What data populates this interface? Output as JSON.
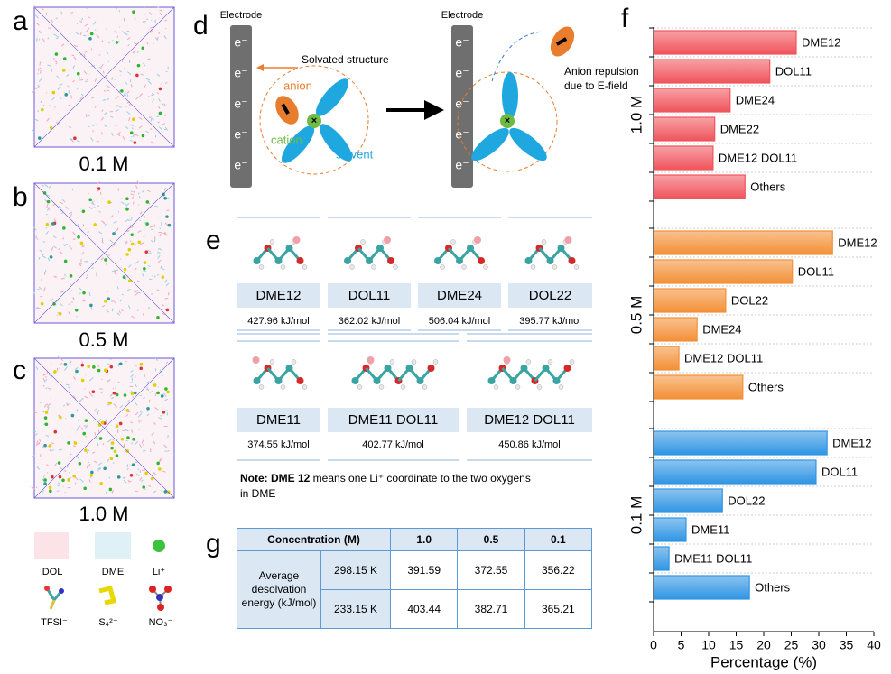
{
  "letters": [
    "a",
    "b",
    "c",
    "d",
    "e",
    "f",
    "g"
  ],
  "boxes": [
    {
      "label": "0.1 M"
    },
    {
      "label": "0.5 M"
    },
    {
      "label": "1.0 M"
    }
  ],
  "species": [
    "DOL",
    "DME",
    "Li⁺",
    "TFSI⁻",
    "S₄²⁻",
    "NO₃⁻"
  ],
  "schematic": {
    "electrode": "Electrode",
    "electrons": [
      "e⁻",
      "e⁻",
      "e⁻",
      "e⁻",
      "e⁻"
    ],
    "solvated": "Solvated structure",
    "anion": "anion",
    "cation": "cation",
    "solvent": "solvent",
    "repulsion": [
      "Anion repulsion",
      "due to E-field"
    ]
  },
  "molecules": [
    {
      "name": "DME12",
      "energy": "427.96 kJ/mol"
    },
    {
      "name": "DOL11",
      "energy": "362.02 kJ/mol"
    },
    {
      "name": "DME24",
      "energy": "506.04 kJ/mol"
    },
    {
      "name": "DOL22",
      "energy": "395.77 kJ/mol"
    },
    {
      "name": "DME11",
      "energy": "374.55 kJ/mol"
    },
    {
      "name": "DME11 DOL11",
      "energy": "402.77 kJ/mol"
    },
    {
      "name": "DME12 DOL11",
      "energy": "450.86 kJ/mol"
    }
  ],
  "note": {
    "bold": "Note: DME 12",
    "line1": " means one Li⁺ coordinate to the two oxygens",
    "line2": "in DME"
  },
  "table": {
    "header": [
      "Concentration (M)",
      "1.0",
      "0.5",
      "0.1"
    ],
    "row_label": "Average desolvation energy (kJ/mol)",
    "rows": [
      [
        "298.15 K",
        391.59,
        372.55,
        356.22
      ],
      [
        "233.15 K",
        403.44,
        382.71,
        365.21
      ]
    ]
  },
  "chart_data": {
    "type": "bar",
    "orientation": "horizontal",
    "xlabel": "Percentage (%)",
    "xlim": [
      0,
      40
    ],
    "xticks": [
      0,
      5,
      10,
      15,
      20,
      25,
      30,
      35,
      40
    ],
    "groups": [
      {
        "name": "1.0 M",
        "color": "#f0545c",
        "categories": [
          "DME12",
          "DOL11",
          "DME24",
          "DME22",
          "DME12 DOL11",
          "Others"
        ],
        "values": [
          25.9,
          21.1,
          13.9,
          11.1,
          10.8,
          16.6
        ]
      },
      {
        "name": "0.5 M",
        "color": "#f39036",
        "categories": [
          "DME12",
          "DOL11",
          "DOL22",
          "DME24",
          "DME12 DOL11",
          "Others"
        ],
        "values": [
          32.5,
          25.2,
          13.1,
          7.9,
          4.6,
          16.2
        ]
      },
      {
        "name": "0.1 M",
        "color": "#2f95e3",
        "categories": [
          "DME12",
          "DOL11",
          "DOL22",
          "DME11",
          "DME11 DOL11",
          "Others"
        ],
        "values": [
          31.5,
          29.5,
          12.5,
          5.9,
          2.8,
          17.4
        ]
      }
    ]
  }
}
